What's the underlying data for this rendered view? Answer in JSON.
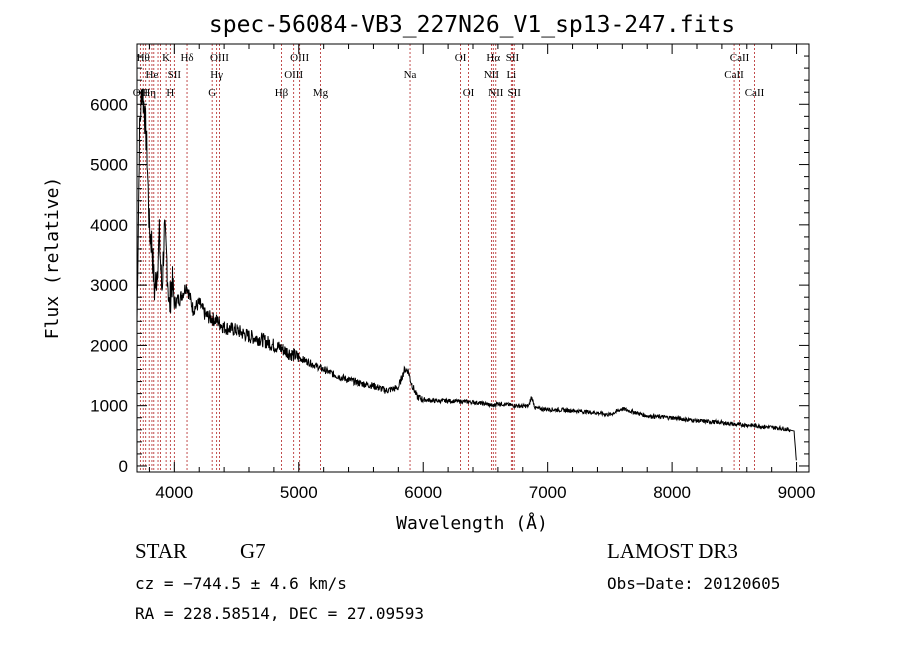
{
  "chart_data": {
    "type": "line",
    "title": "spec-56084-VB3_227N26_V1_sp13-247.fits",
    "xlabel": "Wavelength (Å)",
    "ylabel": "Flux (relative)",
    "xlim": [
      3700,
      9100
    ],
    "ylim": [
      -100,
      7000
    ],
    "xticks": [
      4000,
      5000,
      6000,
      7000,
      8000,
      9000
    ],
    "yticks": [
      0,
      1000,
      2000,
      3000,
      4000,
      5000,
      6000
    ],
    "series": [
      {
        "name": "flux",
        "x": [
          3700,
          3720,
          3740,
          3760,
          3780,
          3800,
          3820,
          3840,
          3860,
          3880,
          3900,
          3920,
          3940,
          3960,
          3980,
          4000,
          4050,
          4100,
          4150,
          4200,
          4250,
          4300,
          4350,
          4400,
          4500,
          4600,
          4700,
          4800,
          4860,
          4900,
          5000,
          5100,
          5200,
          5300,
          5400,
          5500,
          5600,
          5700,
          5800,
          5850,
          5880,
          5900,
          5950,
          6000,
          6100,
          6200,
          6300,
          6400,
          6500,
          6563,
          6600,
          6700,
          6800,
          6850,
          6870,
          6900,
          7000,
          7200,
          7400,
          7500,
          7600,
          7800,
          8000,
          8200,
          8400,
          8500,
          8600,
          8800,
          8900,
          8980,
          9000
        ],
        "y": [
          2400,
          5500,
          6300,
          5900,
          5200,
          3900,
          3700,
          2900,
          3200,
          3800,
          2900,
          3900,
          3400,
          2600,
          3100,
          2700,
          2800,
          3000,
          2600,
          2700,
          2500,
          2450,
          2400,
          2300,
          2250,
          2150,
          2100,
          2000,
          1950,
          1900,
          1800,
          1700,
          1600,
          1500,
          1430,
          1370,
          1330,
          1250,
          1300,
          1600,
          1580,
          1400,
          1150,
          1100,
          1080,
          1080,
          1070,
          1060,
          1030,
          1000,
          1040,
          1010,
          990,
          1000,
          1150,
          960,
          940,
          920,
          880,
          850,
          950,
          830,
          800,
          750,
          720,
          690,
          680,
          640,
          620,
          580,
          40
        ]
      }
    ],
    "lines": [
      {
        "wl": 3727,
        "label": "OII",
        "row": 3
      },
      {
        "wl": 3750,
        "label": "Hθ",
        "row": 1
      },
      {
        "wl": 3770,
        "label": "",
        "row": 0
      },
      {
        "wl": 3798,
        "label": "Hη",
        "row": 3
      },
      {
        "wl": 3820,
        "label": "He",
        "row": 2
      },
      {
        "wl": 3835,
        "label": "",
        "row": 0
      },
      {
        "wl": 3869,
        "label": "",
        "row": 0
      },
      {
        "wl": 3889,
        "label": "",
        "row": 0
      },
      {
        "wl": 3934,
        "label": "K",
        "row": 1
      },
      {
        "wl": 3968,
        "label": "H",
        "row": 3
      },
      {
        "wl": 4000,
        "label": "SII",
        "row": 2
      },
      {
        "wl": 4102,
        "label": "Hδ",
        "row": 1
      },
      {
        "wl": 4304,
        "label": "G",
        "row": 3
      },
      {
        "wl": 4340,
        "label": "Hγ",
        "row": 2
      },
      {
        "wl": 4363,
        "label": "OIII",
        "row": 1
      },
      {
        "wl": 4861,
        "label": "Hβ",
        "row": 3
      },
      {
        "wl": 4959,
        "label": "OIII",
        "row": 2
      },
      {
        "wl": 5007,
        "label": "OIII",
        "row": 1
      },
      {
        "wl": 5175,
        "label": "Mg",
        "row": 3
      },
      {
        "wl": 5894,
        "label": "Na",
        "row": 2
      },
      {
        "wl": 6300,
        "label": "OI",
        "row": 1
      },
      {
        "wl": 6364,
        "label": "OI",
        "row": 3
      },
      {
        "wl": 6548,
        "label": "NII",
        "row": 2
      },
      {
        "wl": 6563,
        "label": "Hα",
        "row": 1
      },
      {
        "wl": 6583,
        "label": "NII",
        "row": 3
      },
      {
        "wl": 6708,
        "label": "Li",
        "row": 2
      },
      {
        "wl": 6717,
        "label": "SII",
        "row": 1
      },
      {
        "wl": 6731,
        "label": "SII",
        "row": 3
      },
      {
        "wl": 8498,
        "label": "CaII",
        "row": 2
      },
      {
        "wl": 8542,
        "label": "CaII",
        "row": 1
      },
      {
        "wl": 8662,
        "label": "CaII",
        "row": 3
      }
    ]
  },
  "info": {
    "object_class": "STAR",
    "subclass": "G7",
    "survey": "LAMOST DR3",
    "cz": "cz = −744.5 ± 4.6 km/s",
    "obs_date": "Obs−Date: 20120605",
    "coords": "RA = 228.58514, DEC =  27.09593"
  }
}
